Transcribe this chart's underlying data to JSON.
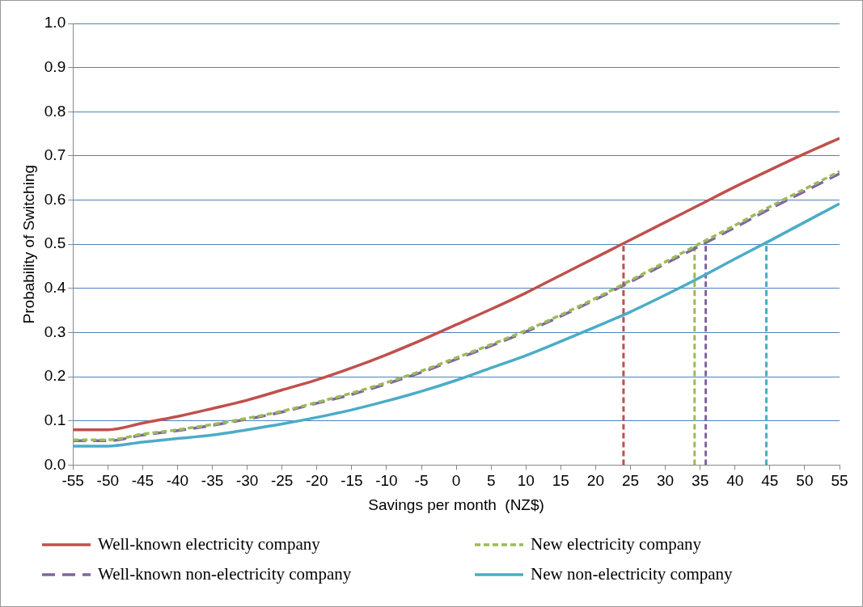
{
  "chart_data": {
    "type": "line",
    "xlabel": "Savings per month  (NZ$)",
    "ylabel": "Probability of Switching",
    "x": [
      -55,
      -50,
      -45,
      -40,
      -35,
      -30,
      -25,
      -20,
      -15,
      -10,
      -5,
      0,
      5,
      10,
      15,
      20,
      25,
      30,
      35,
      40,
      45,
      50,
      55
    ],
    "series": [
      {
        "name": "Well-known electricity company",
        "color": "#c0504d",
        "line_style": "solid",
        "values": [
          0.08,
          0.08,
          0.095,
          0.11,
          0.128,
          0.147,
          0.17,
          0.193,
          0.22,
          0.25,
          0.283,
          0.318,
          0.353,
          0.39,
          0.43,
          0.47,
          0.51,
          0.55,
          0.59,
          0.63,
          0.668,
          0.705,
          0.74
        ]
      },
      {
        "name": "New electricity company",
        "color": "#9bbb59",
        "line_style": "dashed",
        "values": [
          0.057,
          0.057,
          0.07,
          0.08,
          0.092,
          0.106,
          0.122,
          0.142,
          0.163,
          0.187,
          0.213,
          0.243,
          0.273,
          0.305,
          0.34,
          0.378,
          0.418,
          0.46,
          0.502,
          0.543,
          0.585,
          0.625,
          0.665
        ]
      },
      {
        "name": "Well-known non-electricity company",
        "color": "#8064a2",
        "line_style": "dashed",
        "values": [
          0.055,
          0.055,
          0.068,
          0.078,
          0.09,
          0.104,
          0.12,
          0.14,
          0.16,
          0.184,
          0.21,
          0.24,
          0.27,
          0.302,
          0.337,
          0.375,
          0.415,
          0.456,
          0.497,
          0.538,
          0.58,
          0.62,
          0.66
        ]
      },
      {
        "name": "New non-electricity company",
        "color": "#4bacc6",
        "line_style": "solid",
        "values": [
          0.043,
          0.043,
          0.052,
          0.06,
          0.068,
          0.08,
          0.093,
          0.108,
          0.125,
          0.145,
          0.167,
          0.192,
          0.22,
          0.248,
          0.28,
          0.313,
          0.347,
          0.385,
          0.425,
          0.467,
          0.508,
          0.55,
          0.592
        ]
      },
      {
        "color": "#c0504d",
        "line_style": "dashed",
        "x": [
          24,
          24
        ],
        "values": [
          0,
          0.5
        ]
      },
      {
        "color": "#9bbb59",
        "line_style": "dashed",
        "x": [
          34.2,
          34.2
        ],
        "values": [
          0,
          0.5
        ]
      },
      {
        "color": "#8064a2",
        "line_style": "dashed",
        "x": [
          35.8,
          35.8
        ],
        "values": [
          0,
          0.5
        ]
      },
      {
        "color": "#4bacc6",
        "line_style": "dashed",
        "x": [
          44.5,
          44.5
        ],
        "values": [
          0,
          0.5
        ]
      }
    ],
    "xlim": [
      -55,
      55
    ],
    "xticks": [
      -55,
      -50,
      -45,
      -40,
      -35,
      -30,
      -25,
      -20,
      -15,
      -10,
      -5,
      0,
      5,
      10,
      15,
      20,
      25,
      30,
      35,
      40,
      45,
      50,
      55
    ],
    "ylim": [
      0,
      1
    ],
    "yticks": [
      {
        "value": 0,
        "label": "0.0"
      },
      0.1,
      0.2,
      0.3,
      0.4,
      0.5,
      0.6,
      0.7,
      0.8,
      0.9,
      {
        "value": 1,
        "label": "1.0"
      }
    ],
    "grid": "y",
    "legend": "bottom",
    "marker": "none"
  }
}
